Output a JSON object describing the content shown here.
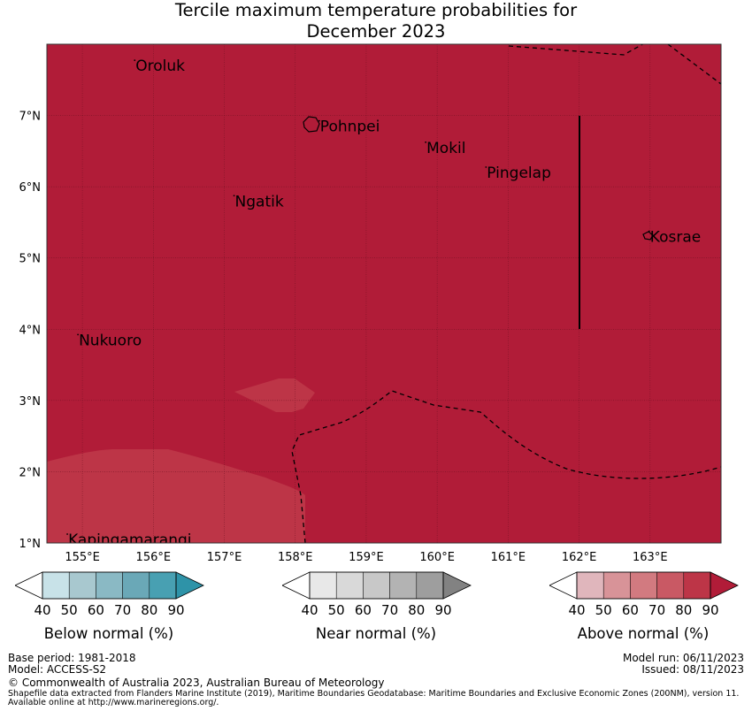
{
  "title": {
    "line1": "Tercile maximum temperature probabilities for",
    "line2": "December 2023"
  },
  "colors": {
    "above_90": "#b11c38",
    "above_80": "#bd3547",
    "background": "#ffffff"
  },
  "map": {
    "lon_range": [
      154.5,
      164.0
    ],
    "lat_range": [
      1.0,
      8.0
    ],
    "lon_ticks": [
      "155°E",
      "156°E",
      "157°E",
      "158°E",
      "159°E",
      "160°E",
      "161°E",
      "162°E",
      "163°E"
    ],
    "lat_ticks": [
      "7°N",
      "6°N",
      "5°N",
      "4°N",
      "3°N",
      "2°N",
      "1°N"
    ],
    "places": [
      {
        "name": "Oroluk",
        "lon": 155.75,
        "lat": 7.7
      },
      {
        "name": "Pohnpei",
        "lon": 158.35,
        "lat": 6.85
      },
      {
        "name": "Mokil",
        "lon": 159.85,
        "lat": 6.55
      },
      {
        "name": "Pingelap",
        "lon": 160.7,
        "lat": 6.2
      },
      {
        "name": "Ngatik",
        "lon": 157.15,
        "lat": 5.8
      },
      {
        "name": "Kosrae",
        "lon": 163.0,
        "lat": 5.3
      },
      {
        "name": "Nukuoro",
        "lon": 154.95,
        "lat": 3.85
      },
      {
        "name": "Kapingamarangi",
        "lon": 154.8,
        "lat": 1.05
      }
    ]
  },
  "colorbars": [
    {
      "label": "Below normal (%)",
      "ticks": [
        "40",
        "50",
        "60",
        "70",
        "80",
        "90"
      ],
      "colors": [
        "#c8e2e8",
        "#a8c8cf",
        "#8ab9c4",
        "#6aa8b7",
        "#48a0b2",
        "#2e93a8"
      ]
    },
    {
      "label": "Near normal (%)",
      "ticks": [
        "40",
        "50",
        "60",
        "70",
        "80",
        "90"
      ],
      "colors": [
        "#e8e8e8",
        "#d9d9d9",
        "#c8c8c8",
        "#b3b3b3",
        "#9e9e9e",
        "#828282"
      ]
    },
    {
      "label": "Above normal (%)",
      "ticks": [
        "40",
        "50",
        "60",
        "70",
        "80",
        "90"
      ],
      "colors": [
        "#e0b6bc",
        "#d89398",
        "#d27a80",
        "#c95964",
        "#bd3547",
        "#b11c38"
      ]
    }
  ],
  "footer": {
    "base_period": "Base period: 1981-2018",
    "model": "Model: ACCESS-S2",
    "model_run": "Model run: 06/11/2023",
    "issued": "Issued: 08/11/2023",
    "copyright": "© Commonwealth of Australia 2023, Australian Bureau of Meteorology",
    "shapefile_line1": "Shapefile data extracted from Flanders Marine Institute (2019), Maritime Boundaries Geodatabase: Maritime Boundaries and Exclusive Economic Zones (200NM), version 11.",
    "shapefile_line2": "Available online at http://www.marineregions.org/."
  }
}
